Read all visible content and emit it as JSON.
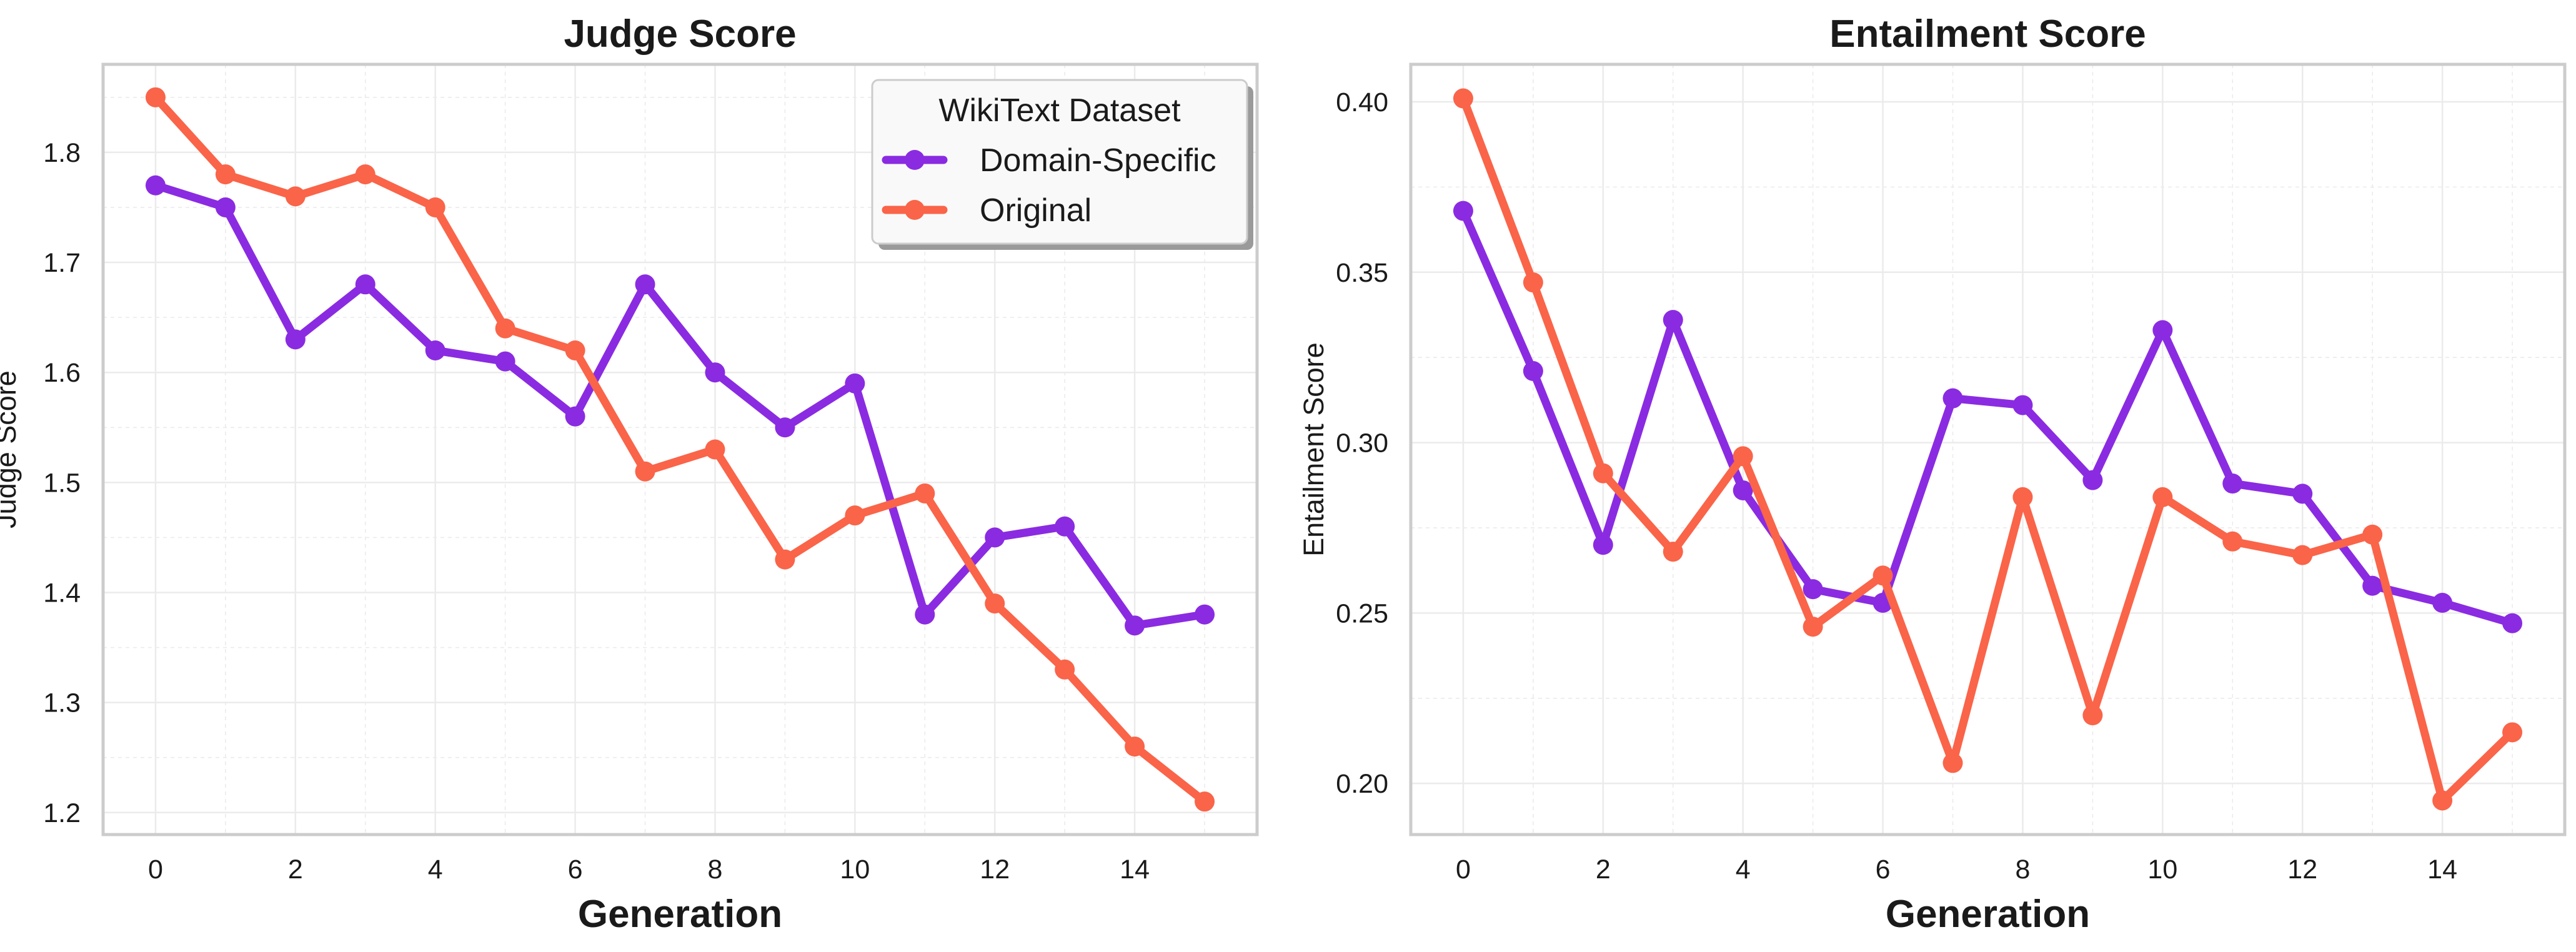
{
  "colors": {
    "domain_specific": "#8a2be2",
    "original": "#fa6449",
    "axes_border": "#cccccc",
    "grid": "#ebebeb",
    "text": "#1a1a1a",
    "legend_border": "#cccccc"
  },
  "chart_data": [
    {
      "type": "line",
      "title": "Judge Score",
      "xlabel": "Generation",
      "ylabel": "Judge Score",
      "xlim": [
        -0.75,
        15.75
      ],
      "ylim": [
        1.18,
        1.88
      ],
      "xticks": [
        0,
        2,
        4,
        6,
        8,
        10,
        12,
        14
      ],
      "xtick_labels": [
        "0",
        "2",
        "4",
        "6",
        "8",
        "10",
        "12",
        "14"
      ],
      "yticks": [
        1.2,
        1.3,
        1.4,
        1.5,
        1.6,
        1.7,
        1.8
      ],
      "ytick_labels": [
        "1.2",
        "1.3",
        "1.4",
        "1.5",
        "1.6",
        "1.7",
        "1.8"
      ],
      "grid": true,
      "x": [
        0,
        1,
        2,
        3,
        4,
        5,
        6,
        7,
        8,
        9,
        10,
        11,
        12,
        13,
        14,
        15
      ],
      "series": [
        {
          "name": "Domain-Specific",
          "color_key": "domain_specific",
          "values": [
            1.77,
            1.75,
            1.63,
            1.68,
            1.62,
            1.61,
            1.56,
            1.68,
            1.6,
            1.55,
            1.59,
            1.38,
            1.45,
            1.46,
            1.37,
            1.38
          ]
        },
        {
          "name": "Original",
          "color_key": "original",
          "values": [
            1.85,
            1.78,
            1.76,
            1.78,
            1.75,
            1.64,
            1.62,
            1.51,
            1.53,
            1.43,
            1.47,
            1.49,
            1.39,
            1.33,
            1.26,
            1.21
          ]
        }
      ],
      "legend": {
        "title": "WikiText Dataset",
        "placement": "top-right",
        "entries": [
          "Domain-Specific",
          "Original"
        ]
      }
    },
    {
      "type": "line",
      "title": "Entailment Score",
      "xlabel": "Generation",
      "ylabel": "Entailment Score",
      "xlim": [
        -0.75,
        15.75
      ],
      "ylim": [
        0.185,
        0.411
      ],
      "xticks": [
        0,
        2,
        4,
        6,
        8,
        10,
        12,
        14
      ],
      "xtick_labels": [
        "0",
        "2",
        "4",
        "6",
        "8",
        "10",
        "12",
        "14"
      ],
      "yticks": [
        0.2,
        0.25,
        0.3,
        0.35,
        0.4
      ],
      "ytick_labels": [
        "0.20",
        "0.25",
        "0.30",
        "0.35",
        "0.40"
      ],
      "grid": true,
      "x": [
        0,
        1,
        2,
        3,
        4,
        5,
        6,
        7,
        8,
        9,
        10,
        11,
        12,
        13,
        14,
        15
      ],
      "series": [
        {
          "name": "Domain-Specific",
          "color_key": "domain_specific",
          "values": [
            0.368,
            0.321,
            0.27,
            0.336,
            0.286,
            0.257,
            0.253,
            0.313,
            0.311,
            0.289,
            0.333,
            0.288,
            0.285,
            0.258,
            0.253,
            0.247
          ]
        },
        {
          "name": "Original",
          "color_key": "original",
          "values": [
            0.401,
            0.347,
            0.291,
            0.268,
            0.296,
            0.246,
            0.261,
            0.206,
            0.284,
            0.22,
            0.284,
            0.271,
            0.267,
            0.273,
            0.195,
            0.215
          ]
        }
      ]
    }
  ]
}
